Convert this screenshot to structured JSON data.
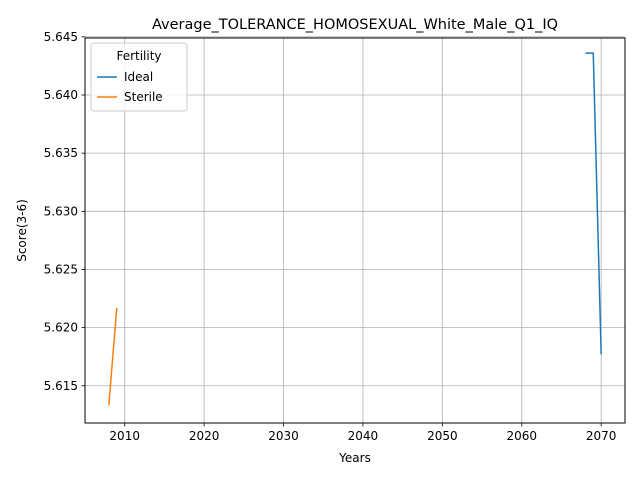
{
  "chart_data": {
    "type": "line",
    "title": "Average_TOLERANCE_HOMOSEXUAL_White_Male_Q1_IQ",
    "xlabel": "Years",
    "ylabel": "Score(3-6)",
    "xlim": [
      2005,
      2073
    ],
    "ylim": [
      5.6118,
      5.6449
    ],
    "xticks": [
      2010,
      2020,
      2030,
      2040,
      2050,
      2060,
      2070
    ],
    "yticks": [
      5.615,
      5.62,
      5.625,
      5.63,
      5.635,
      5.64,
      5.645
    ],
    "grid": true,
    "legend": {
      "title": "Fertility",
      "placement": "top-left"
    },
    "series": [
      {
        "name": "Ideal",
        "color": "#1f77b4",
        "x": [
          2068,
          2069,
          2070
        ],
        "y": [
          5.6436,
          5.6436,
          5.6177
        ]
      },
      {
        "name": "Sterile",
        "color": "#ff7f0e",
        "x": [
          2008,
          2009
        ],
        "y": [
          5.6133,
          5.6217
        ]
      }
    ]
  }
}
